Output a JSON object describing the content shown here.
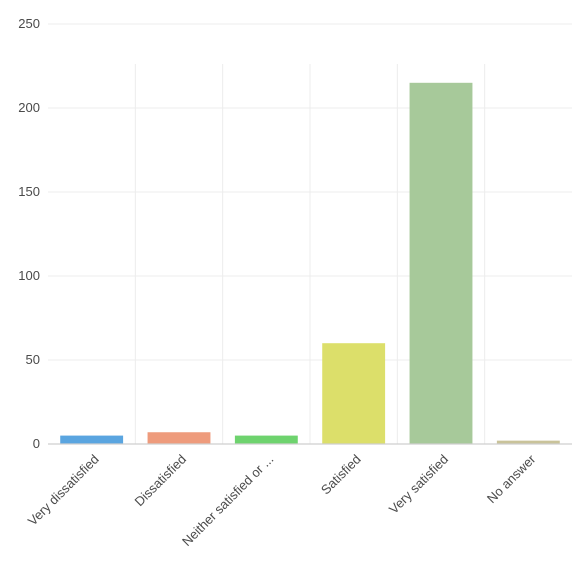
{
  "chart_data": {
    "type": "bar",
    "title": "",
    "xlabel": "",
    "ylabel": "",
    "categories": [
      "Very dissatisfied",
      "Dissatisfied",
      "Neither satisfied or ...",
      "Satisfied",
      "Very satisfied",
      "No answer"
    ],
    "values": [
      5,
      7,
      5,
      60,
      215,
      2
    ],
    "colors": [
      "#5aa5e0",
      "#ee9b7c",
      "#6ed36e",
      "#dcdf6a",
      "#a7c99a",
      "#c9c39a"
    ],
    "ylim": [
      0,
      250
    ],
    "yticks": [
      0,
      50,
      100,
      150,
      200,
      250
    ],
    "grid": true,
    "legend": "none"
  }
}
